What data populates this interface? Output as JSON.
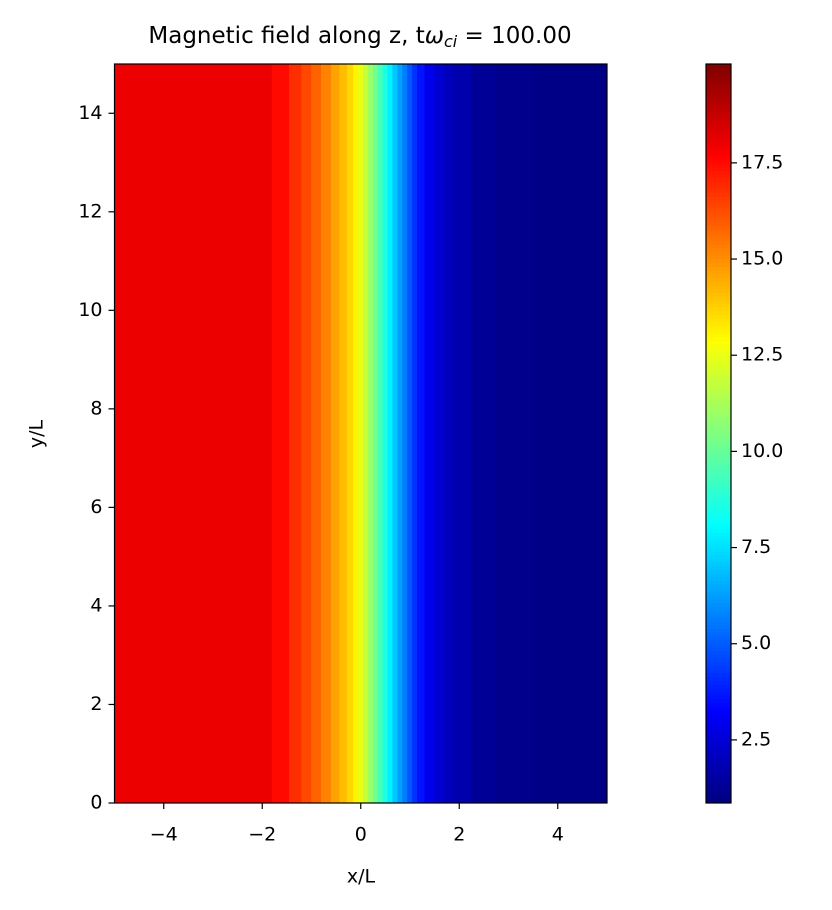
{
  "chart_data": {
    "type": "heatmap",
    "title": [
      "Magnetic field along z, t",
      "ω",
      "ci",
      " = 100.00"
    ],
    "x_label": "x/L",
    "y_label": "y/L",
    "x": [
      -5,
      -4,
      -3,
      -2,
      -1.6,
      -1.3,
      -1.1,
      -0.9,
      -0.7,
      -0.5,
      -0.35,
      -0.2,
      -0.1,
      0,
      0.1,
      0.2,
      0.3,
      0.4,
      0.5,
      0.6,
      0.7,
      0.8,
      0.9,
      1.0,
      1.1,
      1.2,
      1.4,
      1.6,
      1.8,
      2.0,
      2.5,
      3,
      4,
      5
    ],
    "values": [
      18.0,
      18.0,
      18.0,
      18.0,
      17.5,
      16.8,
      16.3,
      15.8,
      15.2,
      14.6,
      14.1,
      13.6,
      13.1,
      12.5,
      11.8,
      11.0,
      10.2,
      9.4,
      8.6,
      7.8,
      7.0,
      6.3,
      5.6,
      4.9,
      4.2,
      3.6,
      2.9,
      2.4,
      2.0,
      1.7,
      1.3,
      1.1,
      1.0,
      1.0
    ],
    "xlim": [
      -5,
      5
    ],
    "ylim": [
      0,
      15
    ],
    "xticks": [
      {
        "value": -4,
        "label": "−4"
      },
      {
        "value": -2,
        "label": "−2"
      },
      0,
      2,
      4
    ],
    "yticks": [
      0,
      2,
      4,
      6,
      8,
      10,
      12,
      14
    ],
    "colormap": "jet",
    "clim": [
      0.86,
      20.07
    ],
    "cticks": [
      2.5,
      {
        "value": 5,
        "label": "5.0"
      },
      7.5,
      {
        "value": 10,
        "label": "10.0"
      },
      12.5,
      {
        "value": 15,
        "label": "15.0"
      },
      17.5
    ]
  }
}
